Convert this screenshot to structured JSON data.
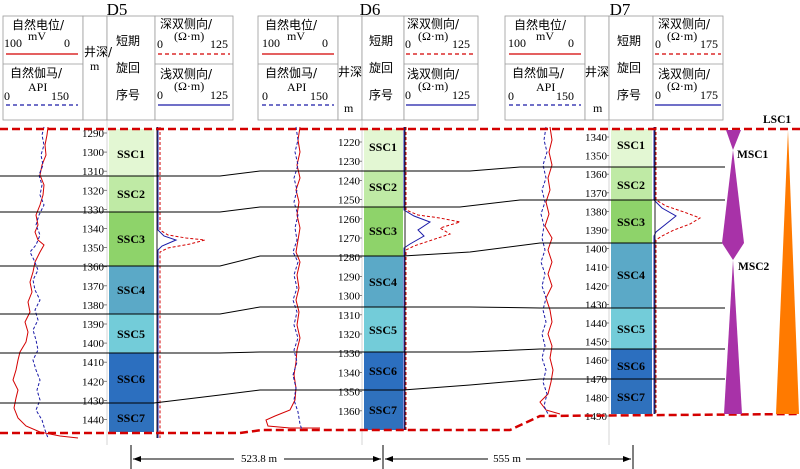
{
  "header": {
    "sp_label": "自然电位/",
    "sp_unit": "mV",
    "gr_label": "自然伽马/",
    "gr_unit": "API",
    "depth_label": "井深/",
    "depth_unit": "m",
    "depth_label_short": "井深",
    "cycle_label_1": "短期",
    "cycle_label_2": "旋回",
    "cycle_label_3": "序号",
    "deep_label": "深双侧向/",
    "shallow_label": "浅双侧向/",
    "res_unit": "(Ω·m)",
    "zero": "0"
  },
  "wells": [
    {
      "name": "D5",
      "sp_max": "100",
      "gr_max": "150",
      "res_max": "125",
      "depth_ticks": [
        "1290",
        "1300",
        "1310",
        "1320",
        "1330",
        "1340",
        "1350",
        "1360",
        "1370",
        "1380",
        "1390",
        "1400",
        "1410",
        "1420",
        "1430",
        "1440"
      ],
      "ssc": [
        "SSC1",
        "SSC2",
        "SSC3",
        "SSC4",
        "SSC5",
        "SSC6",
        "SSC7"
      ]
    },
    {
      "name": "D6",
      "sp_max": "100",
      "gr_max": "150",
      "res_max": "125",
      "depth_ticks": [
        "1220",
        "1230",
        "1240",
        "1250",
        "1260",
        "1270",
        "1280",
        "1290",
        "1300",
        "1310",
        "1320",
        "1330",
        "1340",
        "1350",
        "1360"
      ],
      "ssc": [
        "SSC1",
        "SSC2",
        "SSC3",
        "SSC4",
        "SSC5",
        "SSC6",
        "SSC7"
      ]
    },
    {
      "name": "D7",
      "sp_max": "100",
      "gr_max": "150",
      "res_max": "175",
      "depth_ticks": [
        "1340",
        "1350",
        "1360",
        "1370",
        "1380",
        "1390",
        "1400",
        "1410",
        "1420",
        "1430",
        "1440",
        "1450",
        "1460",
        "1470",
        "1480",
        "1490"
      ],
      "ssc": [
        "SSC1",
        "SSC2",
        "SSC3",
        "SSC4",
        "SSC5",
        "SSC6",
        "SSC7"
      ]
    }
  ],
  "sequence": {
    "lsc": "LSC1",
    "msc1": "MSC1",
    "msc2": "MSC2"
  },
  "distances": [
    "523.8 m",
    "555 m"
  ],
  "colors": {
    "ssc1": "#e3f7d3",
    "ssc2": "#bfeaa5",
    "ssc3": "#8ed36a",
    "ssc4": "#5ba9c7",
    "ssc5": "#73ccd9",
    "ssc6": "#2c6fbf",
    "ssc7": "#2f71bd",
    "sp": "#d40000",
    "gr": "#1a1aa8",
    "boundary": "#d40000",
    "msc": "#a832a8",
    "lsc": "#ff7a00"
  }
}
